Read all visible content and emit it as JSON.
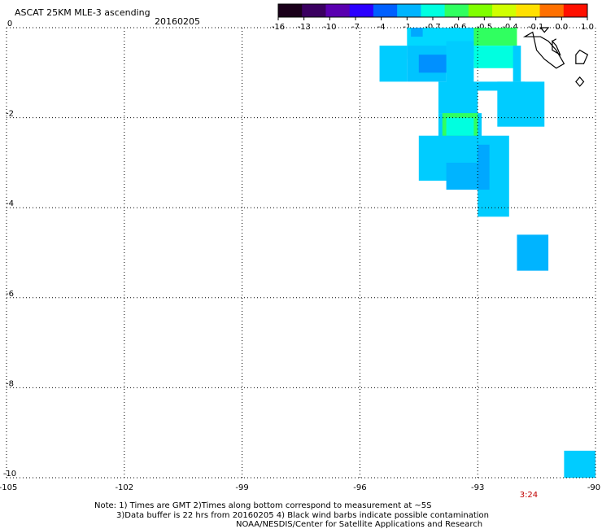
{
  "header": {
    "title": "ASCAT 25KM MLE-3 ascending",
    "date": "20160205"
  },
  "colorbar": {
    "tick_labels": [
      "-16",
      "-13",
      "-10",
      "-7",
      "-4",
      "-1",
      "-0.7",
      "-0.6",
      "-0.5",
      "-0.4",
      "-0.1",
      "0.0",
      "1.0"
    ],
    "colors": [
      "#1a001a",
      "#3a0060",
      "#5a00b0",
      "#2a00ff",
      "#0060ff",
      "#00b4ff",
      "#00ffe0",
      "#30ff60",
      "#80ff00",
      "#d0ff00",
      "#ffe000",
      "#ff7000",
      "#ff1000"
    ]
  },
  "chart_data": {
    "type": "heatmap",
    "xlim": [
      -105,
      -90
    ],
    "ylim": [
      -10,
      0
    ],
    "x_ticks": [
      -105,
      -102,
      -99,
      -96,
      -93,
      -90
    ],
    "x_tick_labels": [
      "-105",
      "-102",
      "-99",
      "-96",
      "-93",
      "-90"
    ],
    "y_ticks": [
      0,
      -2,
      -4,
      -6,
      -8,
      -10
    ],
    "y_tick_labels": [
      "0",
      "-2",
      "-4",
      "-6",
      "-8",
      "-10"
    ],
    "grid": true,
    "time_label": "3:24",
    "time_label_lon": -91.7,
    "land_outline_color": "#000000",
    "cells": [
      {
        "lon": [
          -94.8,
          -93.0
        ],
        "lat": [
          -0.7,
          0.0
        ],
        "color": "#00d8ff"
      },
      {
        "lon": [
          -93.1,
          -92.0
        ],
        "lat": [
          -0.4,
          0.0
        ],
        "color": "#30ff60"
      },
      {
        "lon": [
          -93.1,
          -92.0
        ],
        "lat": [
          -0.9,
          -0.4
        ],
        "color": "#00ffe0"
      },
      {
        "lon": [
          -94.7,
          -94.4
        ],
        "lat": [
          -0.2,
          0.0
        ],
        "color": "#00a8ff"
      },
      {
        "lon": [
          -94.8,
          -93.8
        ],
        "lat": [
          -1.2,
          -0.4
        ],
        "color": "#00c4ff"
      },
      {
        "lon": [
          -94.5,
          -93.7
        ],
        "lat": [
          -1.0,
          -0.6
        ],
        "color": "#0090ff"
      },
      {
        "lon": [
          -93.8,
          -93.1
        ],
        "lat": [
          -1.3,
          -0.3
        ],
        "color": "#00ccff"
      },
      {
        "lon": [
          -95.5,
          -94.8
        ],
        "lat": [
          -1.2,
          -0.4
        ],
        "color": "#00ccff"
      },
      {
        "lon": [
          -92.1,
          -91.9
        ],
        "lat": [
          -1.2,
          -0.4
        ],
        "color": "#00ccff"
      },
      {
        "lon": [
          -94.0,
          -93.0
        ],
        "lat": [
          -1.9,
          -1.2
        ],
        "color": "#00ccff"
      },
      {
        "lon": [
          -93.0,
          -91.8
        ],
        "lat": [
          -1.4,
          -1.2
        ],
        "color": "#00ccff"
      },
      {
        "lon": [
          -92.5,
          -91.3
        ],
        "lat": [
          -2.2,
          -1.2
        ],
        "color": "#00ccff"
      },
      {
        "lon": [
          -94.0,
          -92.9
        ],
        "lat": [
          -3.0,
          -1.9
        ],
        "color": "#00ccff"
      },
      {
        "lon": [
          -93.9,
          -93.0
        ],
        "lat": [
          -2.7,
          -1.9
        ],
        "color": "#30ff60"
      },
      {
        "lon": [
          -93.8,
          -93.1
        ],
        "lat": [
          -2.4,
          -2.0
        ],
        "color": "#00ffe0"
      },
      {
        "lon": [
          -94.5,
          -92.9
        ],
        "lat": [
          -3.4,
          -2.4
        ],
        "color": "#00ccff"
      },
      {
        "lon": [
          -93.8,
          -92.8
        ],
        "lat": [
          -3.6,
          -3.0
        ],
        "color": "#00b4ff"
      },
      {
        "lon": [
          -93.0,
          -92.2
        ],
        "lat": [
          -4.2,
          -2.4
        ],
        "color": "#00ccff"
      },
      {
        "lon": [
          -93.0,
          -92.7
        ],
        "lat": [
          -3.6,
          -2.6
        ],
        "color": "#00a8ff"
      },
      {
        "lon": [
          -92.0,
          -91.2
        ],
        "lat": [
          -5.4,
          -4.6
        ],
        "color": "#00b4ff"
      },
      {
        "lon": [
          -90.8,
          -90.0
        ],
        "lat": [
          -10.0,
          -9.4
        ],
        "color": "#00ccff"
      }
    ],
    "land_outlines": [
      [
        [
          -91.8,
          -0.2
        ],
        [
          -91.6,
          -0.1
        ],
        [
          -91.5,
          -0.5
        ],
        [
          -91.3,
          -0.7
        ],
        [
          -91.0,
          -0.9
        ],
        [
          -90.8,
          -0.8
        ],
        [
          -91.0,
          -0.5
        ],
        [
          -91.2,
          -0.3
        ],
        [
          -91.4,
          -0.2
        ]
      ],
      [
        [
          -91.1,
          -0.3
        ],
        [
          -91.0,
          -0.4
        ],
        [
          -90.9,
          -0.6
        ],
        [
          -91.1,
          -0.5
        ]
      ],
      [
        [
          -90.5,
          -0.6
        ],
        [
          -90.4,
          -0.5
        ],
        [
          -90.2,
          -0.6
        ],
        [
          -90.3,
          -0.8
        ],
        [
          -90.5,
          -0.8
        ]
      ],
      [
        [
          -91.4,
          0.0
        ],
        [
          -91.3,
          -0.1
        ],
        [
          -91.2,
          0.0
        ]
      ],
      [
        [
          -90.5,
          -1.2
        ],
        [
          -90.4,
          -1.3
        ],
        [
          -90.3,
          -1.2
        ],
        [
          -90.4,
          -1.1
        ]
      ],
      [
        [
          -91.1,
          -0.3
        ],
        [
          -91.0,
          -0.25
        ]
      ]
    ]
  },
  "notes": {
    "line1": "Note: 1) Times are GMT 2)Times along bottom correspond to measurement at ~5S",
    "line2": "3)Data buffer is 22 hrs from 20160205 4) Black wind barbs indicate possible contamination",
    "line3": "NOAA/NESDIS/Center for Satellite Applications and Research"
  }
}
